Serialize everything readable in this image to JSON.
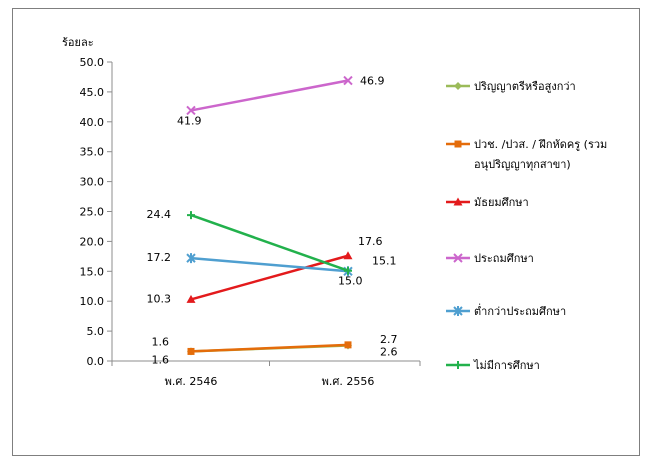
{
  "chart_data": {
    "type": "line",
    "ylabel": "ร้อยละ",
    "ylim": [
      0,
      50
    ],
    "yticks": [
      "0.0",
      "5.0",
      "10.0",
      "15.0",
      "20.0",
      "25.0",
      "30.0",
      "35.0",
      "40.0",
      "45.0",
      "50.0"
    ],
    "categories": [
      "พ.ศ. 2546",
      "พ.ศ. 2556"
    ],
    "grid": false,
    "legend": "right",
    "series": [
      {
        "name": "ปริญญาตรีหรือสูงกว่า",
        "values": [
          1.6,
          2.6
        ],
        "labels": [
          "1.6",
          "2.6"
        ],
        "color": "#9bbb59",
        "marker": "diamond"
      },
      {
        "name": "ปวช. /ปวส. / ฝึกหัดครู (รวมอนุปริญญาทุกสาขา)",
        "name_lines": [
          "ปวช. /ปวส. / ฝึกหัดครู (รวม",
          "อนุปริญญาทุกสาขา)"
        ],
        "values": [
          1.6,
          2.7
        ],
        "labels": [
          "1.6",
          "2.7"
        ],
        "color": "#e46c0a",
        "marker": "square"
      },
      {
        "name": "มัธยมศึกษา",
        "values": [
          10.3,
          17.6
        ],
        "labels": [
          "10.3",
          "17.6"
        ],
        "color": "#e31a1c",
        "marker": "triangle"
      },
      {
        "name": "ประถมศึกษา",
        "values": [
          41.9,
          46.9
        ],
        "labels": [
          "41.9",
          "46.9"
        ],
        "color": "#cc66cc",
        "marker": "x"
      },
      {
        "name": "ต่ำกว่าประถมศึกษา",
        "values": [
          17.2,
          15.0
        ],
        "labels": [
          "17.2",
          "15.0"
        ],
        "color": "#4f9fd0",
        "marker": "star"
      },
      {
        "name": "ไม่มีการศึกษา",
        "values": [
          24.4,
          15.1
        ],
        "labels": [
          "24.4",
          "15.1"
        ],
        "color": "#22b14c",
        "marker": "plus"
      }
    ]
  }
}
